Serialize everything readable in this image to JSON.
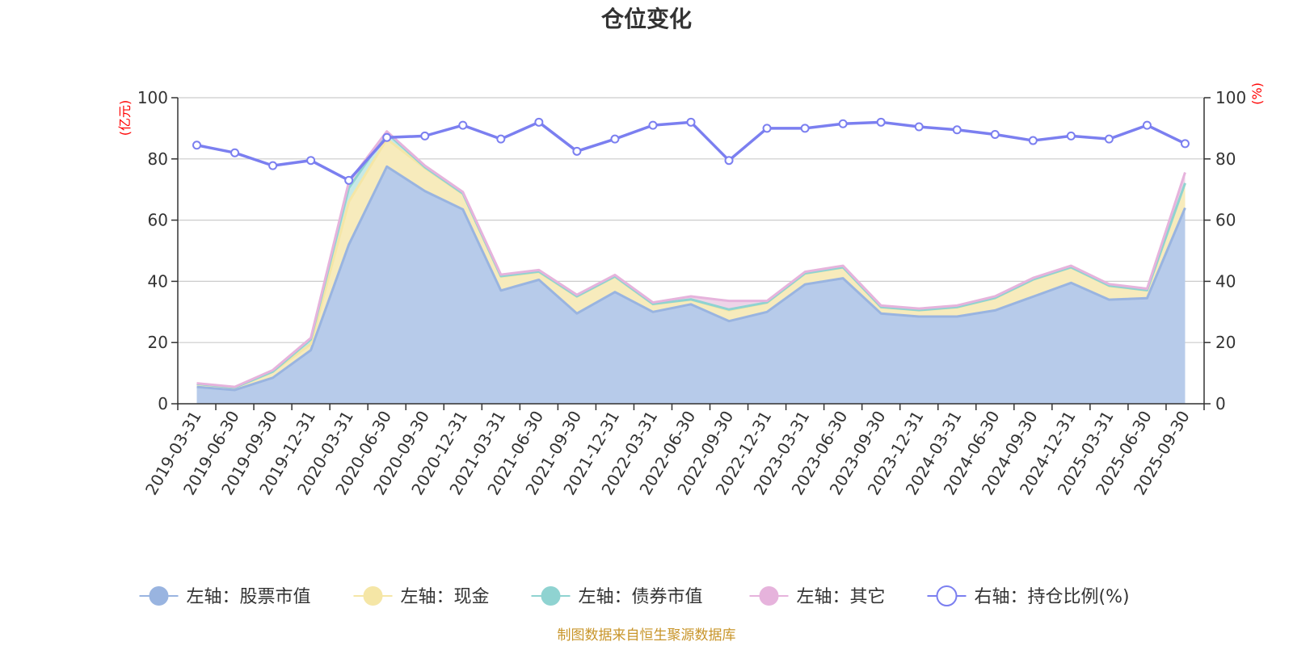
{
  "chart_data": {
    "type": "area",
    "title": "仓位变化",
    "source": "制图数据来自恒生聚源数据库",
    "left_axis": {
      "unit": "(亿元)",
      "unit_color": "#ff0000",
      "min": 0,
      "max": 100,
      "ticks": [
        0,
        20,
        40,
        60,
        80,
        100
      ]
    },
    "right_axis": {
      "unit": "(%)",
      "unit_color": "#ff0000",
      "min": 0,
      "max": 100,
      "ticks": [
        0,
        20,
        40,
        60,
        80,
        100
      ]
    },
    "categories": [
      "2019-03-31",
      "2019-06-30",
      "2019-09-30",
      "2019-12-31",
      "2020-03-31",
      "2020-06-30",
      "2020-09-30",
      "2020-12-31",
      "2021-03-31",
      "2021-06-30",
      "2021-09-30",
      "2021-12-31",
      "2022-03-31",
      "2022-06-30",
      "2022-09-30",
      "2022-12-31",
      "2023-03-31",
      "2023-06-30",
      "2023-09-30",
      "2023-12-31",
      "2024-03-31",
      "2024-06-30",
      "2024-09-30",
      "2024-12-31",
      "2025-03-31",
      "2025-06-30",
      "2025-09-30"
    ],
    "series": [
      {
        "name": "左轴：股票市值",
        "axis": "left",
        "stack": "total",
        "color": "#99b4e0",
        "fill": "#b7cbea",
        "values": [
          5.5,
          4.5,
          8.5,
          17.5,
          52.0,
          77.5,
          69.5,
          63.5,
          37.0,
          40.5,
          29.5,
          36.5,
          30.0,
          32.5,
          27.0,
          30.0,
          39.0,
          41.0,
          29.5,
          28.5,
          28.5,
          30.5,
          35.0,
          39.5,
          34.0,
          34.5,
          64.0
        ]
      },
      {
        "name": "左轴：现金",
        "axis": "left",
        "stack": "total",
        "color": "#f5e6a6",
        "fill": "#f7ebbc",
        "values": [
          1.0,
          0.8,
          2.0,
          2.0,
          14.0,
          9.0,
          7.5,
          5.0,
          4.5,
          2.5,
          5.5,
          5.0,
          2.5,
          1.5,
          3.5,
          3.0,
          3.5,
          3.5,
          2.0,
          2.0,
          3.0,
          4.0,
          5.5,
          5.0,
          4.5,
          2.5,
          8.0
        ]
      },
      {
        "name": "左轴：债券市值",
        "axis": "left",
        "stack": "total",
        "color": "#8fd3d1",
        "fill": "#c6e9e6",
        "values": [
          0,
          0,
          0,
          1.5,
          4.5,
          2.0,
          0.3,
          0.2,
          0.2,
          0.2,
          0.1,
          0.1,
          0.1,
          0.1,
          0.3,
          0.1,
          0.1,
          0.1,
          0.1,
          0.1,
          0.1,
          0.1,
          0.1,
          0.1,
          0.1,
          0.1,
          0.1
        ]
      },
      {
        "name": "左轴：其它",
        "axis": "left",
        "stack": "total",
        "color": "#e6b3dc",
        "fill": "#eed4e8",
        "values": [
          0.2,
          0.2,
          0.5,
          0.5,
          2.0,
          0.5,
          0.5,
          0.5,
          0.5,
          0.5,
          0.5,
          0.5,
          0.5,
          1.0,
          2.8,
          0.5,
          0.5,
          0.5,
          0.5,
          0.5,
          0.5,
          0.5,
          0.5,
          0.5,
          0.5,
          0.5,
          3.5
        ]
      },
      {
        "name": "右轴：持仓比例(%)",
        "axis": "right",
        "type": "line",
        "color": "#7b7ff0",
        "values": [
          84.5,
          82.0,
          77.8,
          79.5,
          73.0,
          87.0,
          87.5,
          91.0,
          86.5,
          92.0,
          82.5,
          86.5,
          91.0,
          92.0,
          79.5,
          90.0,
          90.0,
          91.5,
          92.0,
          90.5,
          89.5,
          88.0,
          86.0,
          87.5,
          86.5,
          91.0,
          85.0
        ]
      }
    ]
  }
}
